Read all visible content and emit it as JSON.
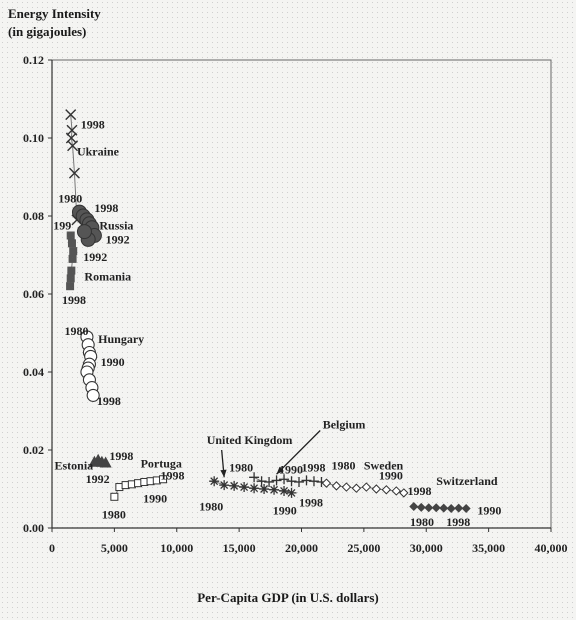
{
  "chart_data": {
    "type": "scatter",
    "title": "",
    "ylabel_lines": [
      "Energy Intensity",
      "(in gigajoules)"
    ],
    "xlabel": "Per-Capita GDP (in U.S. dollars)",
    "xlim": [
      0,
      40000
    ],
    "ylim": [
      0,
      0.12
    ],
    "xticks": [
      0,
      5000,
      10000,
      15000,
      20000,
      25000,
      30000,
      35000,
      40000
    ],
    "xtick_labels": [
      "0",
      "5,000",
      "10,000",
      "15,000",
      "20,000",
      "25,000",
      "30,000",
      "35,000",
      "40,000"
    ],
    "yticks": [
      0,
      0.02,
      0.04,
      0.06,
      0.08,
      0.1,
      0.12
    ],
    "ytick_labels": [
      "0.00",
      "0.02",
      "0.04",
      "0.06",
      "0.08",
      "0.10",
      "0.12"
    ],
    "grid": false,
    "series": [
      {
        "name": "Ukraine",
        "marker": "x",
        "x": [
          1500,
          1600,
          1550,
          1650,
          1800,
          2000
        ],
        "y": [
          0.106,
          0.102,
          0.1,
          0.098,
          0.091,
          0.079
        ]
      },
      {
        "name": "Russia",
        "marker": "circle-filled",
        "x": [
          2200,
          2500,
          2800,
          3000,
          3200,
          3400,
          2900,
          2600
        ],
        "y": [
          0.081,
          0.08,
          0.079,
          0.078,
          0.077,
          0.075,
          0.074,
          0.076
        ]
      },
      {
        "name": "Romania",
        "marker": "square-filled",
        "x": [
          1500,
          1600,
          1700,
          1650,
          1550,
          1500,
          1450
        ],
        "y": [
          0.075,
          0.073,
          0.071,
          0.069,
          0.066,
          0.064,
          0.062
        ]
      },
      {
        "name": "Hungary",
        "marker": "circle-open",
        "x": [
          2800,
          2900,
          3000,
          3100,
          3000,
          2900,
          2800,
          3000,
          3200,
          3300
        ],
        "y": [
          0.049,
          0.047,
          0.045,
          0.044,
          0.042,
          0.041,
          0.04,
          0.038,
          0.036,
          0.034
        ]
      },
      {
        "name": "Estonia",
        "marker": "triangle-filled",
        "x": [
          3400,
          3700,
          4000,
          4300
        ],
        "y": [
          0.017,
          0.0175,
          0.017,
          0.0168
        ]
      },
      {
        "name": "Portugal",
        "marker": "square-open",
        "x": [
          5000,
          5400,
          5900,
          6400,
          6900,
          7400,
          7900,
          8400,
          8900
        ],
        "y": [
          0.008,
          0.0105,
          0.011,
          0.0112,
          0.0115,
          0.0118,
          0.012,
          0.0122,
          0.0125
        ]
      },
      {
        "name": "United Kingdom",
        "marker": "asterisk",
        "x": [
          13000,
          13800,
          14600,
          15400,
          16200,
          17000,
          17800,
          18600,
          19200
        ],
        "y": [
          0.012,
          0.011,
          0.0108,
          0.0105,
          0.0102,
          0.01,
          0.0098,
          0.0095,
          0.009
        ]
      },
      {
        "name": "Belgium",
        "marker": "plus",
        "x": [
          16200,
          16800,
          17400,
          18000,
          18600,
          19200,
          19800,
          20400,
          21000,
          21600
        ],
        "y": [
          0.013,
          0.012,
          0.0118,
          0.0122,
          0.0125,
          0.012,
          0.0118,
          0.0122,
          0.012,
          0.0118
        ]
      },
      {
        "name": "Sweden",
        "marker": "diamond-open",
        "x": [
          22000,
          22800,
          23600,
          24400,
          25200,
          26000,
          26800,
          27600,
          28200
        ],
        "y": [
          0.0115,
          0.0108,
          0.0105,
          0.0102,
          0.0105,
          0.01,
          0.0098,
          0.0095,
          0.009
        ]
      },
      {
        "name": "Switzerland",
        "marker": "diamond-filled",
        "x": [
          29000,
          29600,
          30200,
          30800,
          31400,
          32000,
          32600,
          33200
        ],
        "y": [
          0.0055,
          0.0053,
          0.0052,
          0.0052,
          0.0051,
          0.005,
          0.0051,
          0.005
        ]
      }
    ],
    "annotations": [
      {
        "text": "1998",
        "x": 2300,
        "y": 0.1025
      },
      {
        "text": "Ukraine",
        "x": 2000,
        "y": 0.0955
      },
      {
        "text": "1980",
        "x": 500,
        "y": 0.0835
      },
      {
        "text": "1998",
        "x": 3400,
        "y": 0.081
      },
      {
        "text": "199",
        "x": 100,
        "y": 0.0765
      },
      {
        "text": "Russia",
        "x": 3800,
        "y": 0.0765
      },
      {
        "text": "1992",
        "x": 4300,
        "y": 0.073
      },
      {
        "text": "1992",
        "x": 2500,
        "y": 0.0685
      },
      {
        "text": "Romania",
        "x": 2600,
        "y": 0.0635
      },
      {
        "text": "1998",
        "x": 800,
        "y": 0.0575
      },
      {
        "text": "1980",
        "x": 1000,
        "y": 0.0495
      },
      {
        "text": "Hungary",
        "x": 3700,
        "y": 0.0475
      },
      {
        "text": "1990",
        "x": 3900,
        "y": 0.0415
      },
      {
        "text": "1998",
        "x": 3600,
        "y": 0.0315
      },
      {
        "text": "Estonia",
        "x": 200,
        "y": 0.015
      },
      {
        "text": "1998",
        "x": 4600,
        "y": 0.0175
      },
      {
        "text": "Portuga",
        "x": 7100,
        "y": 0.0155
      },
      {
        "text": "1992",
        "x": 2700,
        "y": 0.0115
      },
      {
        "text": "1998",
        "x": 8700,
        "y": 0.0125
      },
      {
        "text": "1990",
        "x": 7300,
        "y": 0.0065
      },
      {
        "text": "1980",
        "x": 4000,
        "y": 0.0025
      },
      {
        "text": "United Kingdom",
        "x": 12400,
        "y": 0.0215
      },
      {
        "text": "1980",
        "x": 14200,
        "y": 0.0145
      },
      {
        "text": "1980",
        "x": 11800,
        "y": 0.0045
      },
      {
        "text": "1990",
        "x": 18200,
        "y": 0.014
      },
      {
        "text": "1998",
        "x": 20000,
        "y": 0.0145
      },
      {
        "text": "Belgium",
        "x": 21700,
        "y": 0.0255
      },
      {
        "text": "1980",
        "x": 22400,
        "y": 0.015
      },
      {
        "text": "Sweden",
        "x": 25000,
        "y": 0.015
      },
      {
        "text": "1990",
        "x": 26200,
        "y": 0.0125
      },
      {
        "text": "1998",
        "x": 28500,
        "y": 0.0085
      },
      {
        "text": "Switzerland",
        "x": 30800,
        "y": 0.011
      },
      {
        "text": "1990",
        "x": 17700,
        "y": 0.0035
      },
      {
        "text": "1998",
        "x": 19800,
        "y": 0.0055
      },
      {
        "text": "1980",
        "x": 28700,
        "y": 0.0005
      },
      {
        "text": "1998",
        "x": 31600,
        "y": 0.0005
      },
      {
        "text": "1990",
        "x": 34100,
        "y": 0.0035
      }
    ],
    "arrows": [
      {
        "from": [
          13600,
          0.02
        ],
        "to": [
          13800,
          0.013
        ]
      },
      {
        "from": [
          21500,
          0.025
        ],
        "to": [
          18000,
          0.0138
        ]
      }
    ]
  }
}
